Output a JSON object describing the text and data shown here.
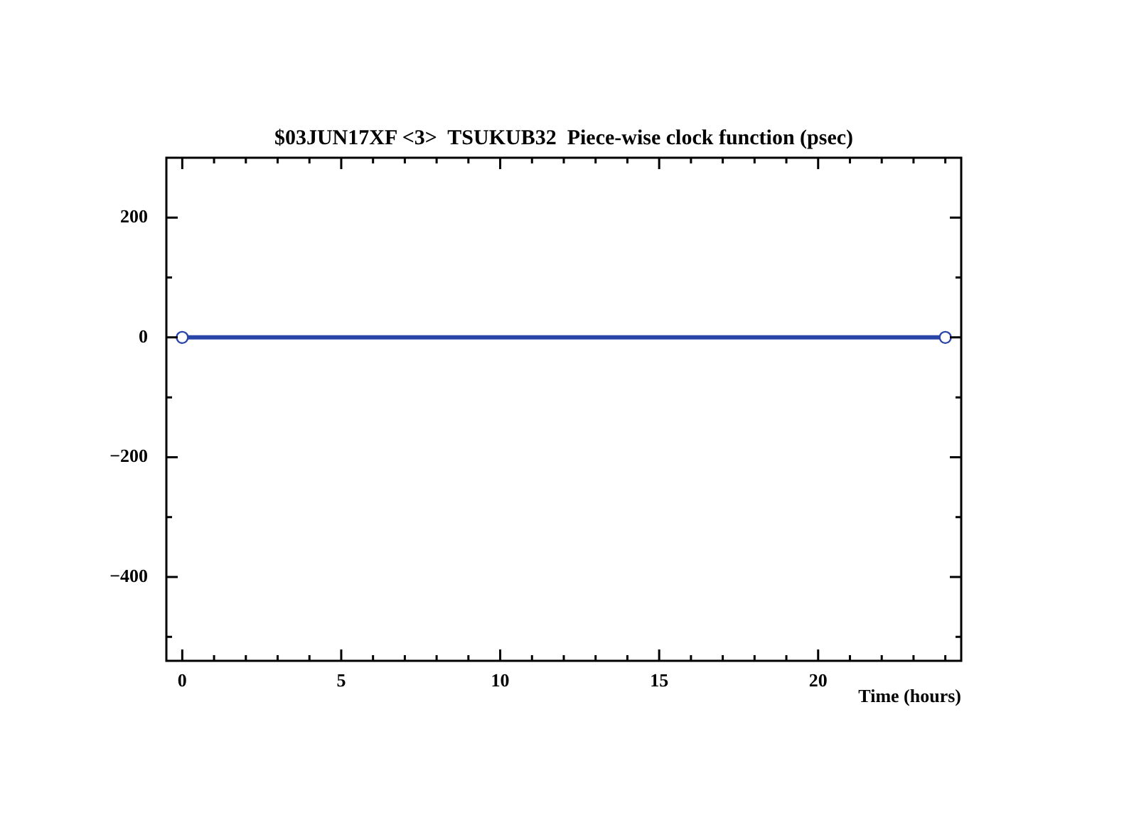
{
  "chart_data": {
    "type": "line",
    "title": "$03JUN17XF <3>  TSUKUB32  Piece-wise clock function (psec)",
    "xlabel": "Time (hours)",
    "series": [
      {
        "color": "#2a45a8",
        "x": [
          0,
          24
        ],
        "values": [
          0,
          0
        ]
      }
    ],
    "xlim": [
      -0.5,
      24.5
    ],
    "xticks": [
      0,
      {
        "value": 1,
        "label": null
      },
      {
        "value": 2,
        "label": null
      },
      {
        "value": 3,
        "label": null
      },
      {
        "value": 4,
        "label": null
      },
      5,
      {
        "value": 6,
        "label": null
      },
      {
        "value": 7,
        "label": null
      },
      {
        "value": 8,
        "label": null
      },
      {
        "value": 9,
        "label": null
      },
      10,
      {
        "value": 11,
        "label": null
      },
      {
        "value": 12,
        "label": null
      },
      {
        "value": 13,
        "label": null
      },
      {
        "value": 14,
        "label": null
      },
      15,
      {
        "value": 16,
        "label": null
      },
      {
        "value": 17,
        "label": null
      },
      {
        "value": 18,
        "label": null
      },
      {
        "value": 19,
        "label": null
      },
      20,
      {
        "value": 21,
        "label": null
      },
      {
        "value": 22,
        "label": null
      },
      {
        "value": 23,
        "label": null
      },
      {
        "value": 24,
        "label": null
      }
    ],
    "ylim": [
      -540,
      300
    ],
    "yticks": [
      {
        "value": -500,
        "label": null
      },
      {
        "value": -400,
        "label": "−400"
      },
      {
        "value": -300,
        "label": null
      },
      {
        "value": -200,
        "label": "−200"
      },
      {
        "value": -100,
        "label": null
      },
      0,
      {
        "value": 100,
        "label": null
      },
      200
    ],
    "marker": "circle",
    "line_style": "solid",
    "grid": false,
    "legend": false
  }
}
